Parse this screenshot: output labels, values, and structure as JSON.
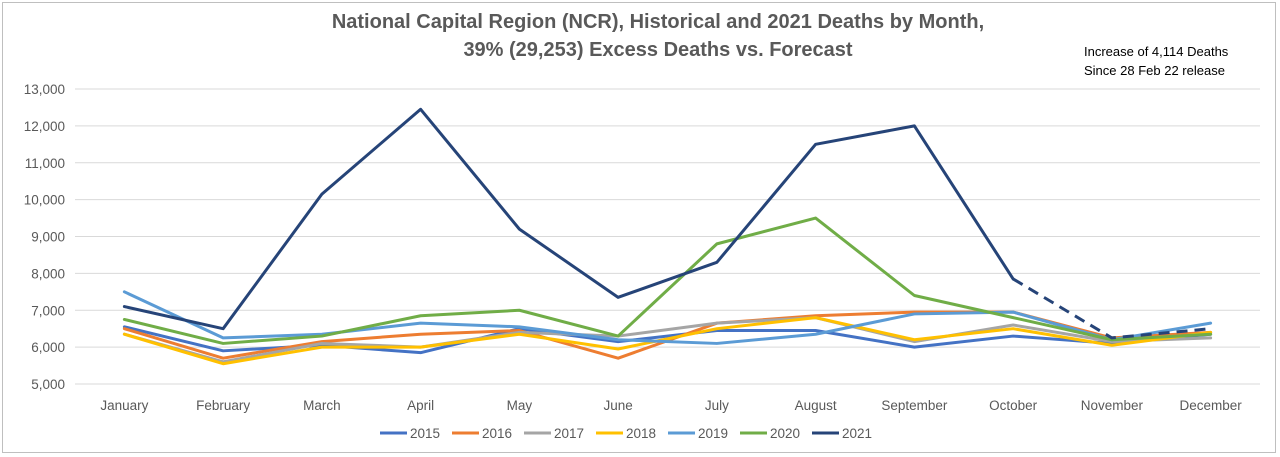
{
  "chart_data": {
    "type": "line",
    "title_line1": "National Capital Region (NCR), Historical and 2021 Deaths by Month,",
    "title_line2": "39% (29,253)  Excess Deaths vs. Forecast",
    "annotation_line1": "Increase of 4,114 Deaths",
    "annotation_line2": "Since 28 Feb 22 release",
    "categories": [
      "January",
      "February",
      "March",
      "April",
      "May",
      "June",
      "July",
      "August",
      "September",
      "October",
      "November",
      "December"
    ],
    "ylim": [
      5000,
      13000
    ],
    "yticks": [
      5000,
      6000,
      7000,
      8000,
      9000,
      10000,
      11000,
      12000,
      13000
    ],
    "ytick_labels": [
      "5,000",
      "6,000",
      "7,000",
      "8,000",
      "9,000",
      "10,000",
      "11,000",
      "12,000",
      "13,000"
    ],
    "grid": true,
    "legend_position": "bottom",
    "series": [
      {
        "name": "2015",
        "color": "#4472c4",
        "values": [
          6550,
          5900,
          6050,
          5850,
          6500,
          6150,
          6450,
          6450,
          6000,
          6300,
          6100,
          6350
        ]
      },
      {
        "name": "2016",
        "color": "#ed7d31",
        "values": [
          6500,
          5700,
          6150,
          6350,
          6450,
          5700,
          6650,
          6850,
          6950,
          6950,
          6250,
          6400
        ]
      },
      {
        "name": "2017",
        "color": "#a5a5a5",
        "values": [
          6350,
          5600,
          6100,
          6000,
          6400,
          6300,
          6650,
          6800,
          6150,
          6600,
          6150,
          6250
        ]
      },
      {
        "name": "2018",
        "color": "#ffc000",
        "values": [
          6350,
          5550,
          6000,
          6000,
          6350,
          5950,
          6500,
          6800,
          6200,
          6500,
          6050,
          6400
        ]
      },
      {
        "name": "2019",
        "color": "#5b9bd5",
        "values": [
          7500,
          6250,
          6350,
          6650,
          6550,
          6200,
          6100,
          6350,
          6900,
          6950,
          6200,
          6650
        ]
      },
      {
        "name": "2020",
        "color": "#70ad47",
        "values": [
          6750,
          6100,
          6300,
          6850,
          7000,
          6300,
          8800,
          9500,
          7400,
          6800,
          6200,
          6350
        ]
      },
      {
        "name": "2021",
        "color": "#264478",
        "values": [
          7100,
          6500,
          10150,
          12450,
          9200,
          7350,
          8300,
          11500,
          12000,
          7850,
          6250,
          6500
        ],
        "dashed_from_index": 9
      }
    ]
  }
}
